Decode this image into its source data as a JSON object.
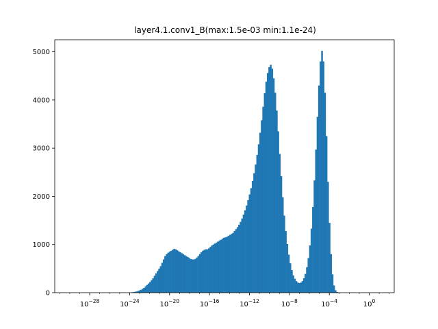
{
  "chart_data": {
    "type": "bar",
    "title": "layer4.1.conv1_B(max:1.5e-03 min:1.1e-24)",
    "xlabel": "",
    "ylabel": "",
    "x_scale": "log",
    "xlim_exponents": [
      -31.5,
      2.5
    ],
    "ylim": [
      0,
      5250
    ],
    "x_tick_exponents": [
      -28,
      -24,
      -20,
      -16,
      -12,
      -8,
      -4,
      0
    ],
    "x_tick_base": "10",
    "y_ticks": [
      0,
      1000,
      2000,
      3000,
      4000,
      5000
    ],
    "bar_color": "#1f77b4",
    "grid": false,
    "legend": "none",
    "bin_range_exponents": [
      -24.0,
      -2.85
    ],
    "bin_counts": [
      5,
      8,
      12,
      18,
      25,
      35,
      48,
      60,
      80,
      100,
      130,
      160,
      190,
      220,
      260,
      300,
      350,
      400,
      450,
      500,
      550,
      620,
      690,
      760,
      800,
      830,
      850,
      870,
      890,
      910,
      900,
      880,
      860,
      840,
      820,
      800,
      780,
      760,
      740,
      720,
      700,
      690,
      690,
      700,
      730,
      760,
      800,
      840,
      870,
      890,
      900,
      900,
      920,
      950,
      980,
      1000,
      1020,
      1040,
      1060,
      1080,
      1100,
      1120,
      1140,
      1150,
      1160,
      1180,
      1200,
      1220,
      1240,
      1280,
      1320,
      1360,
      1410,
      1470,
      1540,
      1620,
      1710,
      1810,
      1920,
      2040,
      2170,
      2320,
      2480,
      2660,
      2860,
      3080,
      3320,
      3580,
      3860,
      4140,
      4380,
      4560,
      4680,
      4730,
      4650,
      4450,
      4150,
      3780,
      3350,
      2880,
      2420,
      1980,
      1600,
      1280,
      1010,
      790,
      610,
      470,
      360,
      290,
      240,
      210,
      200,
      210,
      240,
      300,
      390,
      530,
      720,
      980,
      1330,
      1780,
      2330,
      2970,
      3650,
      4300,
      4800,
      5020,
      4800,
      4150,
      3250,
      2300,
      1450,
      800,
      380,
      150,
      50,
      15,
      4,
      1
    ]
  }
}
